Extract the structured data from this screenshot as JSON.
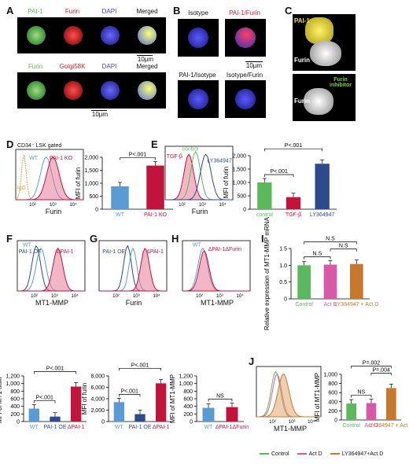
{
  "panels": {
    "A": {
      "letter": "A",
      "row1": [
        "PAI-1",
        "Furin",
        "DAPI",
        "Merged"
      ],
      "row2": [
        "Furin",
        "Golgi58K",
        "DAPI",
        "Merged"
      ],
      "scale": "10μm"
    },
    "B": {
      "letter": "B",
      "labels": [
        "Isotype",
        "PAI-1/Furin",
        "PAI-1/Isotype",
        "Isotype/Furin"
      ],
      "scale": "10μm"
    },
    "C": {
      "letter": "C",
      "top_labels": [
        "PAI-1",
        "Furin"
      ],
      "bottom_labels": [
        "Furin inhibitor",
        "Furin"
      ]
    },
    "D": {
      "letter": "D",
      "gate": "CD34⁻ LSK gated",
      "hist_labels": [
        "WT",
        "PAI-1 KO",
        "IgG"
      ],
      "xlabel": "Furin"
    },
    "E": {
      "letter": "E",
      "hist_labels": [
        "control",
        "TGF-β",
        "LY364947"
      ],
      "xlabel": "Furin"
    },
    "F": {
      "letter": "F",
      "hist_labels": [
        "WT",
        "PAI-1 OE",
        "ΔPAI-1"
      ],
      "xlabel": "MT1-MMP"
    },
    "G": {
      "letter": "G",
      "hist_labels": [
        "PAI-1 OE",
        "ΔPAI-1"
      ],
      "xlabel": "Furin"
    },
    "H": {
      "letter": "H",
      "hist_labels": [
        "WT",
        "ΔPAI-1ΔFurin"
      ],
      "xlabel": "MT1-MMP"
    },
    "I": {
      "letter": "I"
    },
    "J": {
      "letter": "J",
      "xlabel": "MT1-MMP",
      "legend": [
        "Control",
        "Act D",
        "LY364947+Act D"
      ]
    }
  },
  "colors": {
    "blue": "#5b9bd5",
    "red": "#c0143c",
    "green": "#5cb85c",
    "navy": "#2c4a8c",
    "magenta": "#d65aa8",
    "orange": "#c8782c",
    "yellow": "#e8e04a"
  },
  "chart_data": [
    {
      "id": "D-bar",
      "type": "bar",
      "ylabel": "MFI of furin",
      "ylim": [
        0,
        2000
      ],
      "yticks": [
        "0",
        "500",
        "1,000",
        "1,500",
        "2,000"
      ],
      "categories": [
        "WT",
        "PAI-1 KO"
      ],
      "values": [
        880,
        1680
      ],
      "colors": [
        "#5b9bd5",
        "#c0143c"
      ],
      "sig": [
        "P<.001"
      ]
    },
    {
      "id": "E-bar",
      "type": "bar",
      "ylabel": "MFI of furin",
      "ylim": [
        0,
        2000
      ],
      "yticks": [
        "0",
        "500",
        "1,000",
        "1,500",
        "2,000"
      ],
      "categories": [
        "control",
        "TGF-β",
        "LY364947"
      ],
      "values": [
        1000,
        450,
        1700
      ],
      "colors": [
        "#5cb85c",
        "#c0143c",
        "#2c4a8c"
      ],
      "sig": [
        "P<.001",
        "P<.001"
      ]
    },
    {
      "id": "F-bar",
      "type": "bar",
      "ylabel": "MFI of MT1-MMP",
      "ylim": [
        0,
        1200
      ],
      "yticks": [
        "0",
        "200",
        "400",
        "600",
        "800",
        "1,000",
        "1,200"
      ],
      "categories": [
        "WT",
        "PAI-1 OE",
        "ΔPAI-1"
      ],
      "values": [
        340,
        130,
        920
      ],
      "colors": [
        "#5b9bd5",
        "#2c4a8c",
        "#c0143c"
      ],
      "sig": [
        "P<.001",
        "P<.001"
      ]
    },
    {
      "id": "G-bar",
      "type": "bar",
      "ylabel": "MFI of furin",
      "ylim": [
        0,
        8000
      ],
      "yticks": [
        "0",
        "2,000",
        "4,000",
        "6,000",
        "8,000"
      ],
      "categories": [
        "WT",
        "PAI-1 OE",
        "ΔPAI-1"
      ],
      "values": [
        3400,
        1300,
        6700
      ],
      "colors": [
        "#5b9bd5",
        "#2c4a8c",
        "#c0143c"
      ],
      "sig": [
        "P<.001",
        "P<.001"
      ]
    },
    {
      "id": "H-bar",
      "type": "bar",
      "ylabel": "MFI of MT1-MMP",
      "ylim": [
        0,
        1200
      ],
      "yticks": [
        "0",
        "200",
        "400",
        "600",
        "800",
        "1,000",
        "1,200"
      ],
      "categories": [
        "WT",
        "ΔPAI-1ΔFurin"
      ],
      "values": [
        360,
        380
      ],
      "colors": [
        "#5b9bd5",
        "#c0143c"
      ],
      "sig": [
        "NS"
      ]
    },
    {
      "id": "I-bar",
      "type": "bar",
      "ylabel": "Relative expression of MT1-MMP mRNA",
      "ylim": [
        0,
        1.5
      ],
      "yticks": [
        "0",
        "0.5",
        "1.0",
        "1.5"
      ],
      "categories": [
        "Control",
        "Act D",
        "LY364947 + Act D"
      ],
      "values": [
        1.0,
        1.02,
        1.04
      ],
      "colors": [
        "#5cb85c",
        "#d65aa8",
        "#c8782c"
      ],
      "sig": [
        "N.S",
        "N.S",
        "N.S"
      ]
    },
    {
      "id": "J-bar",
      "type": "bar",
      "ylabel": "MFI of MT1-MMP",
      "ylim": [
        0,
        1000
      ],
      "yticks": [
        "0",
        "200",
        "400",
        "600",
        "800",
        "1,000"
      ],
      "categories": [
        "Control",
        "Act D",
        "LY364947 + Act D"
      ],
      "values": [
        360,
        370,
        700
      ],
      "colors": [
        "#5cb85c",
        "#d65aa8",
        "#c8782c"
      ],
      "sig": [
        "NS",
        "P=.004",
        "P=.002"
      ]
    }
  ]
}
